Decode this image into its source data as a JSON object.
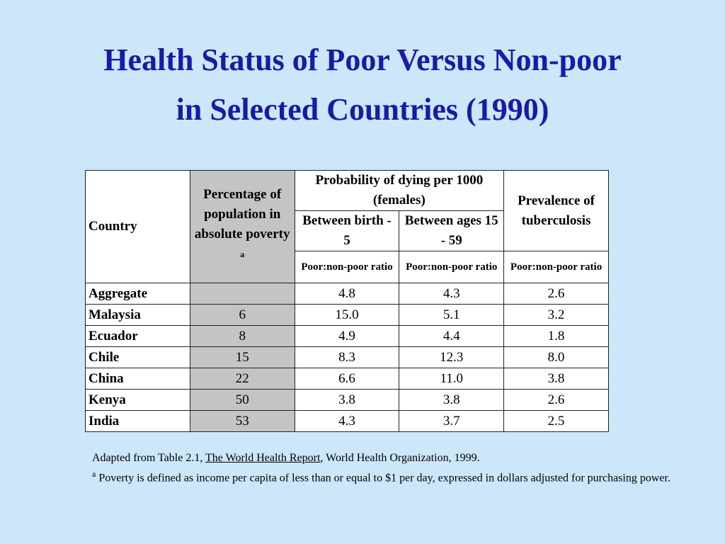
{
  "title": {
    "line1": "Health Status of Poor Versus Non-poor",
    "line2": "in Selected Countries (1990)"
  },
  "table": {
    "headers": {
      "country": "Country",
      "percentage": "Percentage of population in absolute poverty",
      "percentage_sup": "a",
      "probability": "Probability of dying per 1000 (females)",
      "between_birth": "Between birth - 5",
      "between_ages": "Between ages 15 - 59",
      "prevalence": "Prevalence of tuberculosis",
      "ratio": "Poor:non-poor ratio"
    },
    "rows": [
      {
        "country": "Aggregate",
        "poverty": "",
        "birth5": "4.8",
        "ages1559": "4.3",
        "tb": "2.6"
      },
      {
        "country": "Malaysia",
        "poverty": "6",
        "birth5": "15.0",
        "ages1559": "5.1",
        "tb": "3.2"
      },
      {
        "country": "Ecuador",
        "poverty": "8",
        "birth5": "4.9",
        "ages1559": "4.4",
        "tb": "1.8"
      },
      {
        "country": "Chile",
        "poverty": "15",
        "birth5": "8.3",
        "ages1559": "12.3",
        "tb": "8.0"
      },
      {
        "country": "China",
        "poverty": "22",
        "birth5": "6.6",
        "ages1559": "11.0",
        "tb": "3.8"
      },
      {
        "country": "Kenya",
        "poverty": "50",
        "birth5": "3.8",
        "ages1559": "3.8",
        "tb": "2.6"
      },
      {
        "country": "India",
        "poverty": "53",
        "birth5": "4.3",
        "ages1559": "3.7",
        "tb": "2.5"
      }
    ]
  },
  "notes": {
    "source_prefix": "Adapted from Table 2.1, ",
    "source_title": "The World Health Report",
    "source_suffix": ", World Health Organization, 1999.",
    "footnote_mark": "a",
    "footnote_text": " Poverty is defined as income per capita of less than or equal to $1 per day, expressed in dollars adjusted for purchasing power."
  },
  "colors": {
    "background": "#cce6fa",
    "title": "#1a1aa6",
    "shaded_column": "#c4c4c4"
  }
}
